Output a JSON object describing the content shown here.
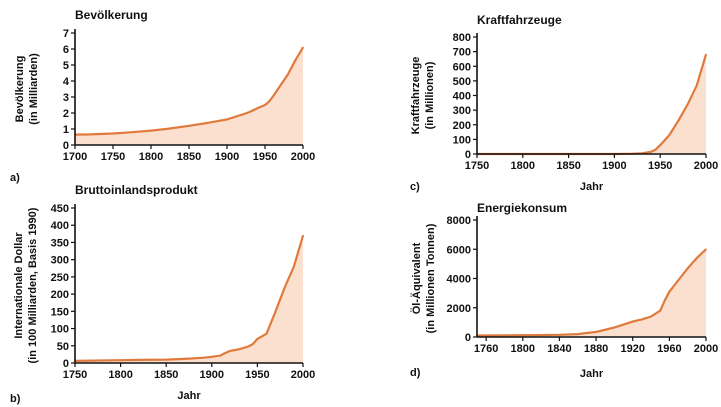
{
  "chart_data": [
    {
      "type": "area",
      "title": "Bevölkerung",
      "panel": "a)",
      "xlabel": "",
      "ylabel": [
        "Bevölkerung",
        "(in Milliarden)"
      ],
      "xlim": [
        1700,
        2000
      ],
      "ylim": [
        0,
        7
      ],
      "xticks": [
        1700,
        1750,
        1800,
        1850,
        1900,
        1950,
        2000
      ],
      "yticks": [
        0,
        1,
        2,
        3,
        4,
        5,
        6,
        7
      ],
      "x": [
        1700,
        1720,
        1750,
        1775,
        1800,
        1820,
        1850,
        1870,
        1900,
        1910,
        1920,
        1930,
        1940,
        1950,
        1955,
        1960,
        1970,
        1980,
        1990,
        2000
      ],
      "y": [
        0.65,
        0.66,
        0.72,
        0.8,
        0.9,
        1.0,
        1.2,
        1.35,
        1.6,
        1.75,
        1.9,
        2.07,
        2.3,
        2.5,
        2.7,
        3.0,
        3.7,
        4.4,
        5.3,
        6.1
      ],
      "colors": {
        "line": "#e07a3c",
        "fill": "#fbe0cf"
      }
    },
    {
      "type": "area",
      "title": "Bruttoinlandsprodukt",
      "panel": "b)",
      "xlabel": "Jahr",
      "ylabel": [
        "Internationale Dollar",
        "(in 100 Milliarden, Basis 1990)"
      ],
      "xlim": [
        1750,
        2000
      ],
      "ylim": [
        0,
        450
      ],
      "xticks": [
        1750,
        1800,
        1850,
        1900,
        1950,
        2000
      ],
      "yticks": [
        0,
        50,
        100,
        150,
        200,
        250,
        300,
        350,
        400,
        450
      ],
      "x": [
        1750,
        1800,
        1820,
        1850,
        1870,
        1890,
        1900,
        1910,
        1913,
        1920,
        1930,
        1940,
        1945,
        1950,
        1960,
        1970,
        1980,
        1990,
        2000
      ],
      "y": [
        6,
        8,
        9,
        10,
        12,
        15,
        18,
        22,
        27,
        35,
        40,
        48,
        55,
        70,
        85,
        150,
        220,
        280,
        370
      ],
      "colors": {
        "line": "#e07a3c",
        "fill": "#fbe0cf"
      }
    },
    {
      "type": "area",
      "title": "Kraftfahrzeuge",
      "panel": "c)",
      "xlabel": "Jahr",
      "ylabel": [
        "Kraftfahrzeuge",
        "(in Millionen)"
      ],
      "xlim": [
        1750,
        2000
      ],
      "ylim": [
        0,
        800
      ],
      "xticks": [
        1750,
        1800,
        1850,
        1900,
        1950,
        2000
      ],
      "yticks": [
        0,
        100,
        200,
        300,
        400,
        500,
        600,
        700,
        800
      ],
      "x": [
        1750,
        1900,
        1920,
        1930,
        1940,
        1945,
        1950,
        1960,
        1970,
        1980,
        1990,
        2000
      ],
      "y": [
        0,
        0,
        2,
        5,
        15,
        30,
        60,
        130,
        230,
        340,
        470,
        680
      ],
      "colors": {
        "line": "#e07a3c",
        "fill": "#fbe0cf"
      }
    },
    {
      "type": "area",
      "title": "Energiekonsum",
      "panel": "d)",
      "xlabel": "Jahr",
      "ylabel": [
        "Öl-Äquivalent",
        "(in Millionen Tonnen)"
      ],
      "xlim": [
        1750,
        2000
      ],
      "ylim": [
        0,
        8000
      ],
      "xticks": [
        1760,
        1800,
        1840,
        1880,
        1920,
        1960,
        2000
      ],
      "yticks": [
        0,
        2000,
        4000,
        6000,
        8000
      ],
      "x": [
        1750,
        1800,
        1840,
        1860,
        1880,
        1900,
        1910,
        1920,
        1930,
        1940,
        1950,
        1955,
        1960,
        1970,
        1980,
        1990,
        2000
      ],
      "y": [
        100,
        120,
        150,
        200,
        350,
        650,
        850,
        1050,
        1200,
        1400,
        1800,
        2500,
        3100,
        3900,
        4700,
        5400,
        6000
      ],
      "colors": {
        "line": "#e07a3c",
        "fill": "#fbe0cf"
      }
    }
  ]
}
